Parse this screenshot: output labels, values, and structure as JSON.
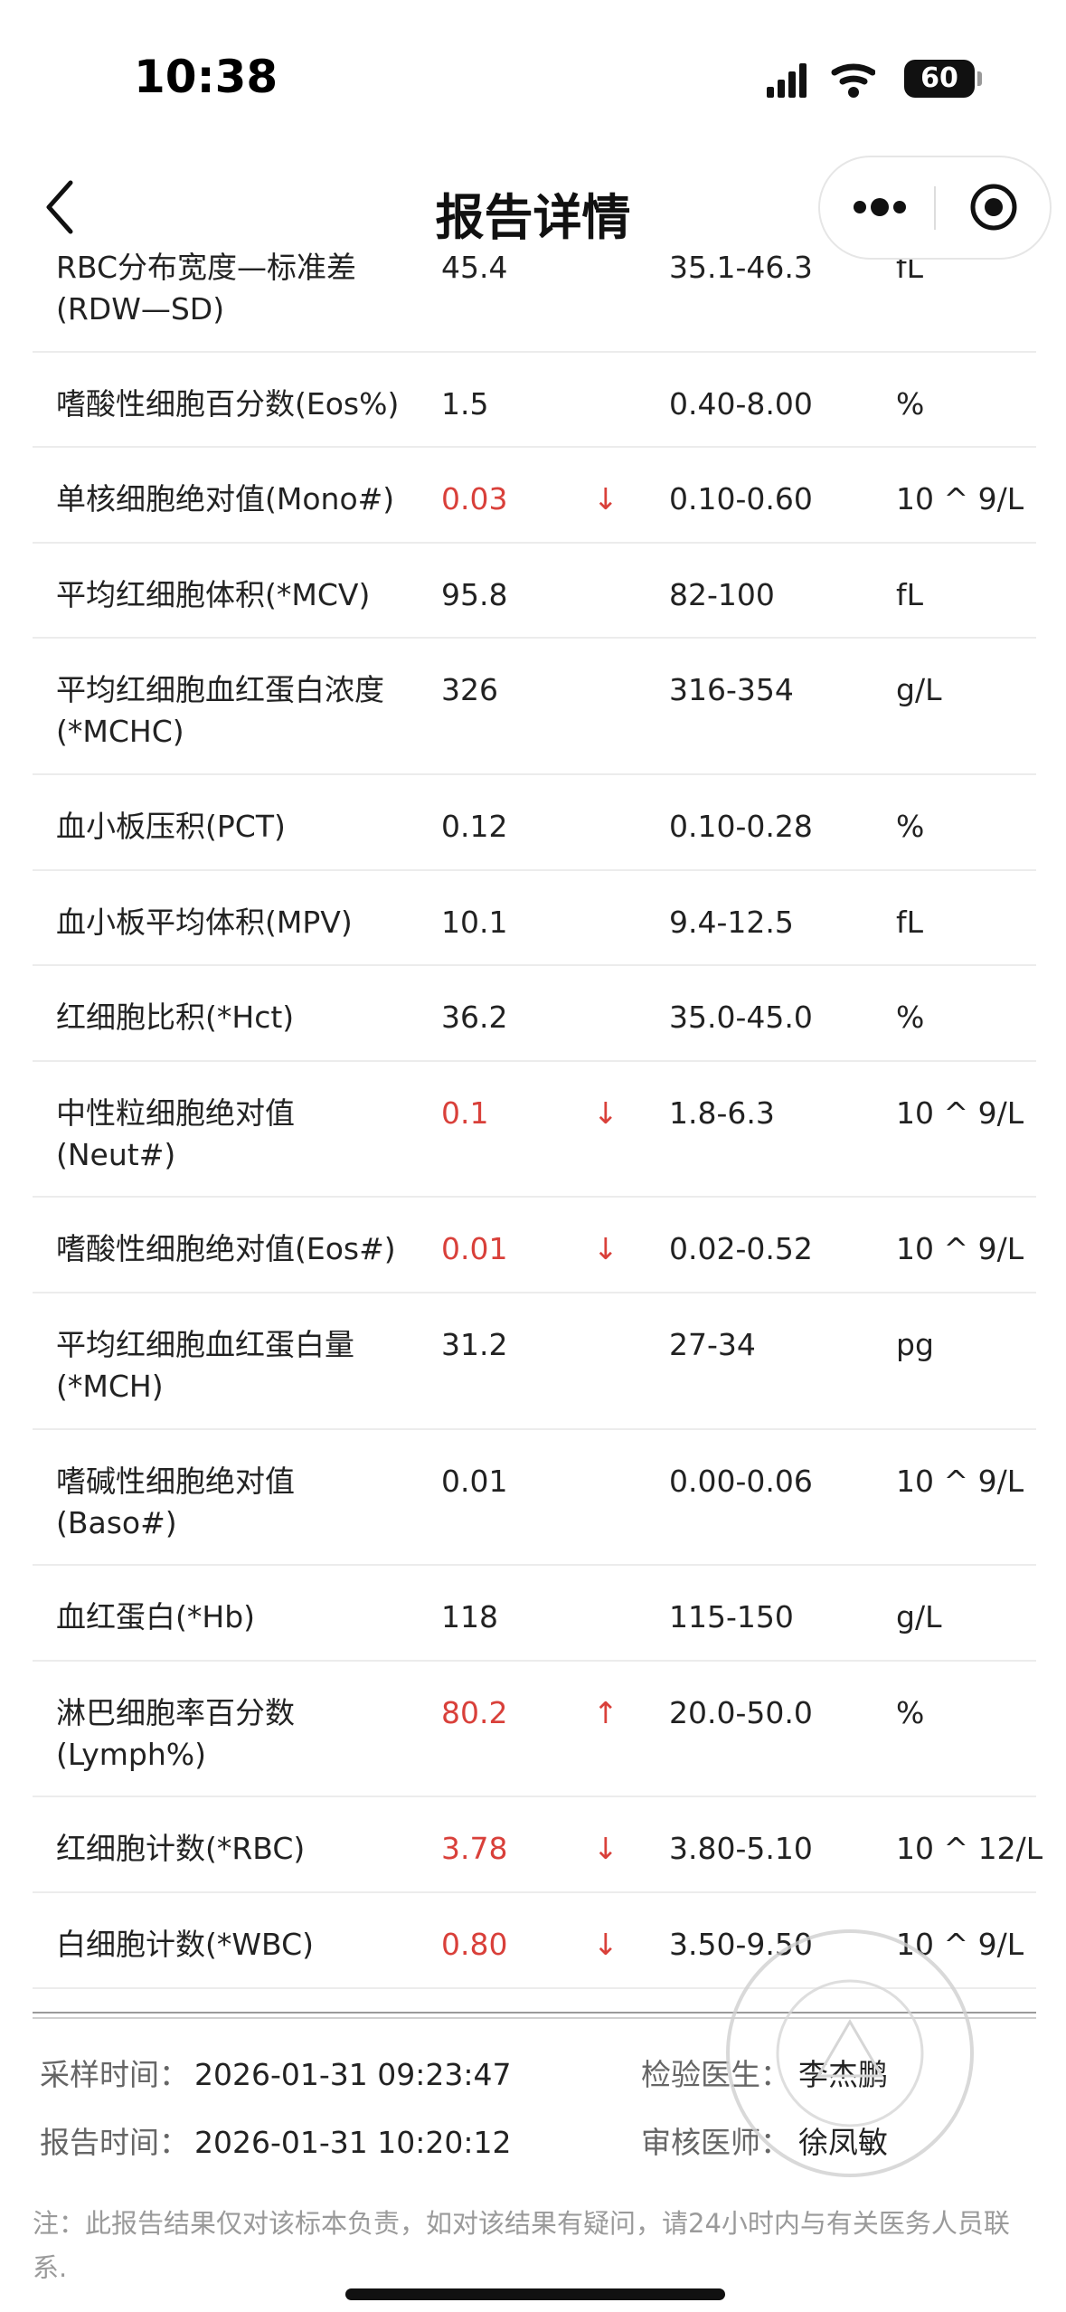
{
  "status_bar": {
    "time": "10:38",
    "battery": "60"
  },
  "header": {
    "title": "报告详情"
  },
  "table": {
    "rows": [
      {
        "name_lines": [
          "RBC分布宽度—标准差",
          "(RDW—SD)"
        ],
        "value": "45.4",
        "range": "35.1-46.3",
        "unit": "fL"
      },
      {
        "name_lines": [
          "嗜酸性细胞百分数(Eos%)"
        ],
        "value": "1.5",
        "range": "0.40-8.00",
        "unit": "%"
      },
      {
        "name_lines": [
          "单核细胞绝对值(Mono#)"
        ],
        "value": "0.03",
        "flag": "↓",
        "range": "0.10-0.60",
        "unit": "10 ^ 9/L"
      },
      {
        "name_lines": [
          "平均红细胞体积(*MCV)"
        ],
        "value": "95.8",
        "range": "82-100",
        "unit": "fL"
      },
      {
        "name_lines": [
          "平均红细胞血红蛋白浓度",
          "(*MCHC)"
        ],
        "value": "326",
        "range": "316-354",
        "unit": "g/L"
      },
      {
        "name_lines": [
          "血小板压积(PCT)"
        ],
        "value": "0.12",
        "range": "0.10-0.28",
        "unit": "%"
      },
      {
        "name_lines": [
          "血小板平均体积(MPV)"
        ],
        "value": "10.1",
        "range": "9.4-12.5",
        "unit": "fL"
      },
      {
        "name_lines": [
          "红细胞比积(*Hct)"
        ],
        "value": "36.2",
        "range": "35.0-45.0",
        "unit": "%"
      },
      {
        "name_lines": [
          "中性粒细胞绝对值",
          "(Neut#)"
        ],
        "value": "0.1",
        "flag": "↓",
        "range": "1.8-6.3",
        "unit": "10 ^ 9/L"
      },
      {
        "name_lines": [
          "嗜酸性细胞绝对值(Eos#)"
        ],
        "value": "0.01",
        "flag": "↓",
        "range": "0.02-0.52",
        "unit": "10 ^ 9/L"
      },
      {
        "name_lines": [
          "平均红细胞血红蛋白量",
          "(*MCH)"
        ],
        "value": "31.2",
        "range": "27-34",
        "unit": "pg"
      },
      {
        "name_lines": [
          "嗜碱性细胞绝对值",
          "(Baso#)"
        ],
        "value": "0.01",
        "range": "0.00-0.06",
        "unit": "10 ^ 9/L"
      },
      {
        "name_lines": [
          "血红蛋白(*Hb)"
        ],
        "value": "118",
        "range": "115-150",
        "unit": "g/L"
      },
      {
        "name_lines": [
          "淋巴细胞率百分数",
          "(Lymph%)"
        ],
        "value": "80.2",
        "flag": "↑",
        "range": "20.0-50.0",
        "unit": "%"
      },
      {
        "name_lines": [
          "红细胞计数(*RBC)"
        ],
        "value": "3.78",
        "flag": "↓",
        "range": "3.80-5.10",
        "unit": "10 ^ 12/L"
      },
      {
        "name_lines": [
          "白细胞计数(*WBC)"
        ],
        "value": "0.80",
        "flag": "↓",
        "range": "3.50-9.50",
        "unit": "10 ^ 9/L"
      }
    ]
  },
  "footer": {
    "sample_time_label": "采样时间：",
    "sample_time": "2026-01-31 09:23:47",
    "tester_label": "检验医生：",
    "tester": "李杰鹏",
    "report_time_label": "报告时间：",
    "report_time": "2026-01-31 10:20:12",
    "reviewer_label": "审核医师：",
    "reviewer": "徐凤敏",
    "note": "注：此报告结果仅对该标本负责，如对该结果有疑问，请24小时内与有关医务人员联系."
  }
}
